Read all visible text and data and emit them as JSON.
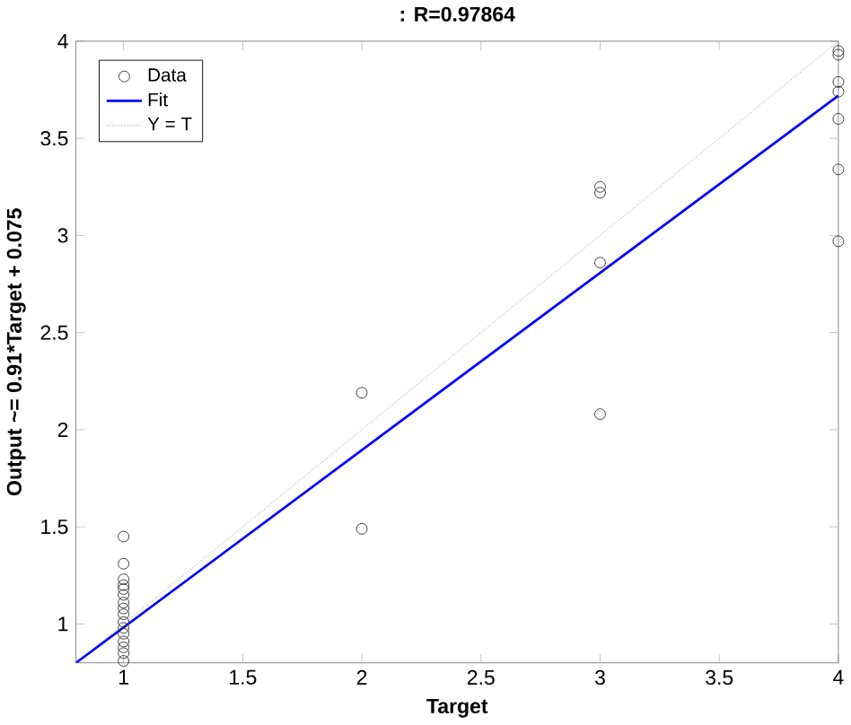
{
  "chart_data": {
    "type": "scatter",
    "title": ": R=0.97864",
    "xlabel": "Target",
    "ylabel": "Output ~= 0.91*Target + 0.075",
    "xlim": [
      0.8,
      4
    ],
    "ylim": [
      0.8,
      4
    ],
    "xticks": [
      1,
      1.5,
      2,
      2.5,
      3,
      3.5,
      4
    ],
    "yticks": [
      1,
      1.5,
      2,
      2.5,
      3,
      3.5,
      4
    ],
    "grid": false,
    "legend": "top left",
    "series": [
      {
        "name": "Data",
        "marker": "circle",
        "color": "#333333",
        "x": [
          1,
          1,
          1,
          1,
          1,
          1,
          1,
          1,
          1,
          1,
          1,
          1,
          1,
          1,
          1,
          1,
          2,
          2,
          3,
          3,
          3,
          3,
          4,
          4,
          4,
          4,
          4,
          4,
          4
        ],
        "values": [
          1.45,
          1.31,
          1.23,
          1.2,
          1.18,
          1.15,
          1.11,
          1.08,
          1.05,
          1.01,
          0.98,
          0.95,
          0.91,
          0.88,
          0.85,
          0.81,
          2.19,
          1.49,
          3.25,
          3.22,
          2.86,
          2.08,
          3.95,
          3.93,
          3.79,
          3.74,
          3.6,
          3.34,
          2.97
        ]
      },
      {
        "name": "Fit",
        "type": "line",
        "line_style": "solid",
        "color": "#0000ff",
        "x": [
          0.8,
          4
        ],
        "values": [
          0.8,
          3.72
        ]
      },
      {
        "name": "Y = T",
        "type": "line",
        "line_style": "dotted",
        "color": "#808080",
        "x": [
          0.8,
          4
        ],
        "values": [
          0.8,
          4
        ]
      }
    ]
  }
}
